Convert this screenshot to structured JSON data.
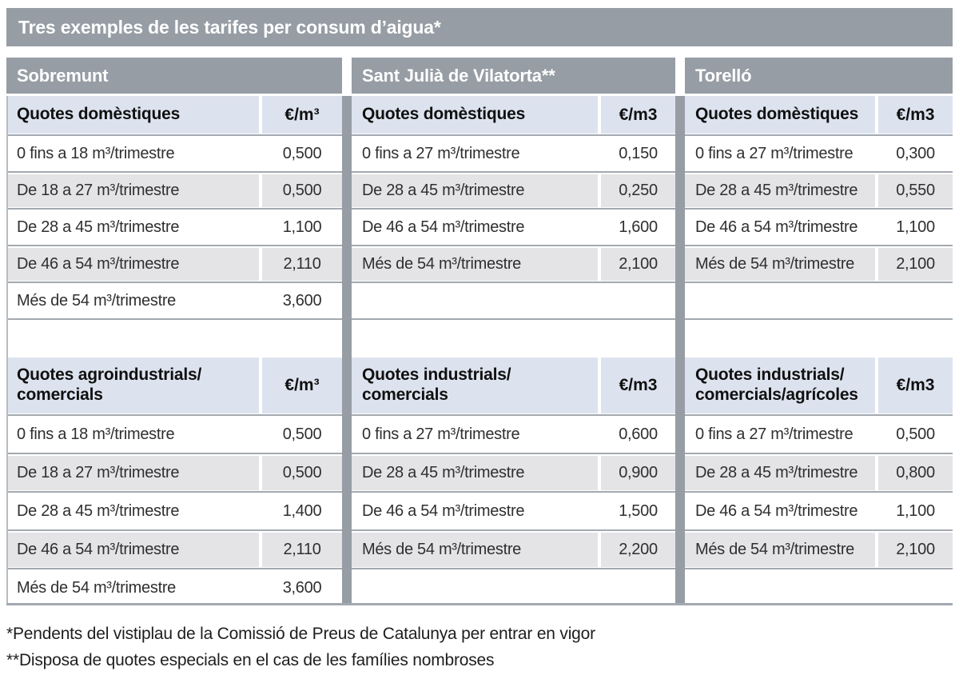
{
  "title": "Tres exemples de les tarifes per consum d’aigua*",
  "municipalities": [
    {
      "name": "Sobremunt",
      "sections": [
        {
          "header": "Quotes domèstiques",
          "unit": "€/m³",
          "rows": [
            {
              "label": "0 fins a 18 m³/trimestre",
              "value": "0,500"
            },
            {
              "label": "De 18 a 27 m³/trimestre",
              "value": "0,500"
            },
            {
              "label": "De 28 a 45 m³/trimestre",
              "value": "1,100"
            },
            {
              "label": "De 46 a 54 m³/trimestre",
              "value": "2,110"
            },
            {
              "label": "Més de 54 m³/trimestre",
              "value": "3,600"
            }
          ]
        },
        {
          "header": "Quotes agroindustrials/\ncomercials",
          "unit": "€/m³",
          "rows": [
            {
              "label": "0 fins a 18 m³/trimestre",
              "value": "0,500"
            },
            {
              "label": "De 18 a 27 m³/trimestre",
              "value": "0,500"
            },
            {
              "label": "De 28 a 45 m³/trimestre",
              "value": "1,400"
            },
            {
              "label": "De 46 a 54 m³/trimestre",
              "value": "2,110"
            },
            {
              "label": "Més de 54 m³/trimestre",
              "value": "3,600"
            }
          ]
        }
      ]
    },
    {
      "name": "Sant Julià de Vilatorta**",
      "sections": [
        {
          "header": "Quotes domèstiques",
          "unit": "€/m3",
          "rows": [
            {
              "label": "0 fins a 27 m³/trimestre",
              "value": "0,150"
            },
            {
              "label": "De 28 a 45 m³/trimestre",
              "value": "0,250"
            },
            {
              "label": "De 46 a 54 m³/trimestre",
              "value": "1,600"
            },
            {
              "label": "Més de 54 m³/trimestre",
              "value": "2,100"
            }
          ]
        },
        {
          "header": "Quotes industrials/\ncomercials",
          "unit": "€/m3",
          "rows": [
            {
              "label": "0 fins a 27 m³/trimestre",
              "value": "0,600"
            },
            {
              "label": "De 28 a 45 m³/trimestre",
              "value": "0,900"
            },
            {
              "label": "De 46 a 54 m³/trimestre",
              "value": "1,500"
            },
            {
              "label": "Més de 54 m³/trimestre",
              "value": "2,200"
            }
          ]
        }
      ]
    },
    {
      "name": "Torelló",
      "sections": [
        {
          "header": "Quotes domèstiques",
          "unit": "€/m3",
          "rows": [
            {
              "label": "0 fins a 27 m³/trimestre",
              "value": "0,300"
            },
            {
              "label": "De 28 a 45 m³/trimestre",
              "value": "0,550"
            },
            {
              "label": "De 46 a 54 m³/trimestre",
              "value": "1,100"
            },
            {
              "label": "Més de 54 m³/trimestre",
              "value": "2,100"
            }
          ]
        },
        {
          "header": "Quotes industrials/\ncomercials/agrícoles",
          "unit": "€/m3",
          "rows": [
            {
              "label": "0 fins a 27 m³/trimestre",
              "value": "0,500"
            },
            {
              "label": "De 28 a 45 m³/trimestre",
              "value": "0,800"
            },
            {
              "label": "De 46 a 54 m³/trimestre",
              "value": "1,100"
            },
            {
              "label": "Més de 54 m³/trimestre",
              "value": "2,100"
            }
          ]
        }
      ]
    }
  ],
  "footnotes": [
    "*Pendents del vistiplau de la Comissió de Preus de Catalunya per entrar en vigor",
    "**Disposa de quotes especials en el cas de les famílies nombroses"
  ],
  "colors": {
    "header_gray": "#969da4",
    "subheader_blue": "#dde3ee",
    "row_alt_gray": "#e4e4e7",
    "separator_gray": "#a3a9b0",
    "title_text": "#ffffff",
    "body_text": "#2f2f2f"
  }
}
